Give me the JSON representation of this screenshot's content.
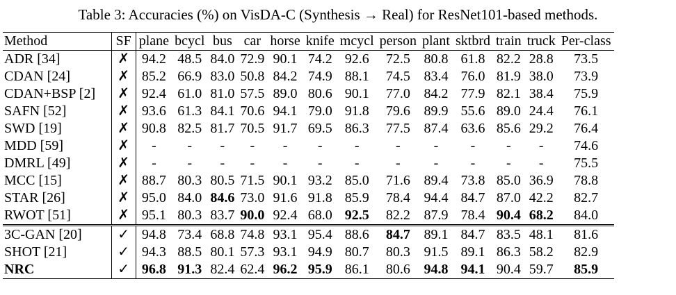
{
  "caption": "Table 3: Accuracies (%) on VisDA-C (Synthesis → Real) for ResNet101-based methods.",
  "columns": [
    "Method",
    "SF",
    "plane",
    "bcycl",
    "bus",
    "car",
    "horse",
    "knife",
    "mcycl",
    "person",
    "plant",
    "sktbrd",
    "train",
    "truck",
    "Per-class"
  ],
  "rows": [
    {
      "method": "ADR [34]",
      "sf": "✗",
      "vals": [
        "94.2",
        "48.5",
        "84.0",
        "72.9",
        "90.1",
        "74.2",
        "92.6",
        "72.5",
        "80.8",
        "61.8",
        "82.2",
        "28.8",
        "73.5"
      ],
      "bold": []
    },
    {
      "method": "CDAN [24]",
      "sf": "✗",
      "vals": [
        "85.2",
        "66.9",
        "83.0",
        "50.8",
        "84.2",
        "74.9",
        "88.1",
        "74.5",
        "83.4",
        "76.0",
        "81.9",
        "38.0",
        "73.9"
      ],
      "bold": []
    },
    {
      "method": "CDAN+BSP [2]",
      "sf": "✗",
      "vals": [
        "92.4",
        "61.0",
        "81.0",
        "57.5",
        "89.0",
        "80.6",
        "90.1",
        "77.0",
        "84.2",
        "77.9",
        "82.1",
        "38.4",
        "75.9"
      ],
      "bold": []
    },
    {
      "method": "SAFN [52]",
      "sf": "✗",
      "vals": [
        "93.6",
        "61.3",
        "84.1",
        "70.6",
        "94.1",
        "79.0",
        "91.8",
        "79.6",
        "89.9",
        "55.6",
        "89.0",
        "24.4",
        "76.1"
      ],
      "bold": []
    },
    {
      "method": "SWD [19]",
      "sf": "✗",
      "vals": [
        "90.8",
        "82.5",
        "81.7",
        "70.5",
        "91.7",
        "69.5",
        "86.3",
        "77.5",
        "87.4",
        "63.6",
        "85.6",
        "29.2",
        "76.4"
      ],
      "bold": []
    },
    {
      "method": "MDD [59]",
      "sf": "✗",
      "vals": [
        "-",
        "-",
        "-",
        "-",
        "-",
        "-",
        "-",
        "-",
        "-",
        "-",
        "-",
        "-",
        "74.6"
      ],
      "bold": []
    },
    {
      "method": "DMRL [49]",
      "sf": "✗",
      "vals": [
        "-",
        "-",
        "-",
        "-",
        "-",
        "-",
        "-",
        "-",
        "-",
        "-",
        "-",
        "-",
        "75.5"
      ],
      "bold": []
    },
    {
      "method": "MCC [15]",
      "sf": "✗",
      "vals": [
        "88.7",
        "80.3",
        "80.5",
        "71.5",
        "90.1",
        "93.2",
        "85.0",
        "71.6",
        "89.4",
        "73.8",
        "85.0",
        "36.9",
        "78.8"
      ],
      "bold": []
    },
    {
      "method": "STAR [26]",
      "sf": "✗",
      "vals": [
        "95.0",
        "84.0",
        "84.6",
        "73.0",
        "91.6",
        "91.8",
        "85.9",
        "78.4",
        "94.4",
        "84.7",
        "87.0",
        "42.2",
        "82.7"
      ],
      "bold": [
        2
      ]
    },
    {
      "method": "RWOT [51]",
      "sf": "✗",
      "vals": [
        "95.1",
        "80.3",
        "83.7",
        "90.0",
        "92.4",
        "68.0",
        "92.5",
        "82.2",
        "87.9",
        "78.4",
        "90.4",
        "68.2",
        "84.0"
      ],
      "bold": [
        3,
        6,
        10,
        11
      ]
    },
    {
      "method": "3C-GAN [20]",
      "sf": "✓",
      "vals": [
        "94.8",
        "73.4",
        "68.8",
        "74.8",
        "93.1",
        "95.4",
        "88.6",
        "84.7",
        "89.1",
        "84.7",
        "83.5",
        "48.1",
        "81.6"
      ],
      "bold": [
        7
      ]
    },
    {
      "method": "SHOT [21]",
      "sf": "✓",
      "vals": [
        "94.3",
        "88.5",
        "80.1",
        "57.3",
        "93.1",
        "94.9",
        "80.7",
        "80.3",
        "91.5",
        "89.1",
        "86.3",
        "58.2",
        "82.9"
      ],
      "bold": []
    },
    {
      "method": "NRC",
      "sf": "✓",
      "vals": [
        "96.8",
        "91.3",
        "82.4",
        "62.4",
        "96.2",
        "95.9",
        "86.1",
        "80.6",
        "94.8",
        "94.1",
        "90.4",
        "59.7",
        "85.9"
      ],
      "bold": [
        0,
        1,
        4,
        5,
        8,
        9,
        12
      ],
      "method_bold": true
    }
  ]
}
